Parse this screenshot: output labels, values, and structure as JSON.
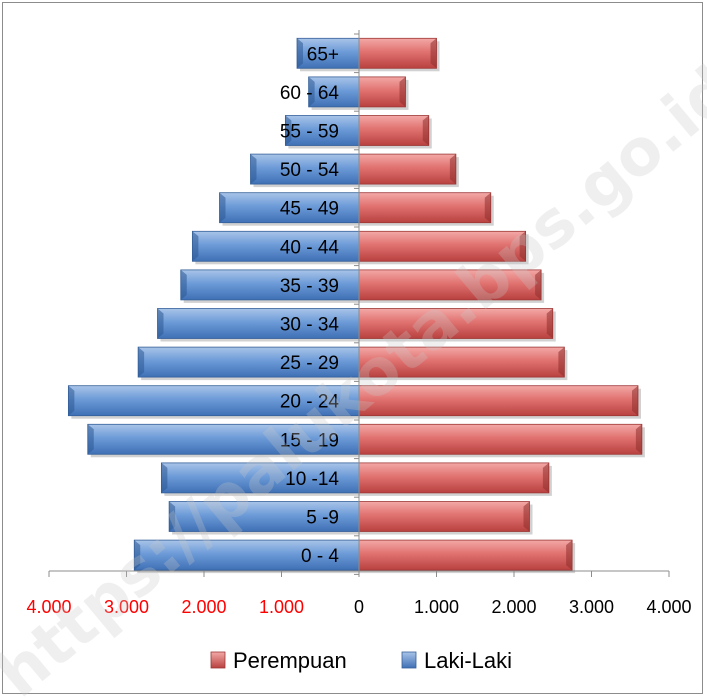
{
  "chart_data": {
    "type": "bar",
    "orientation": "horizontal-pyramid",
    "categories": [
      "0 - 4",
      "5 -9",
      "10 -14",
      "15 - 19",
      "20 - 24",
      "25 - 29",
      "30 - 34",
      "35 - 39",
      "40 - 44",
      "45 - 49",
      "50 - 54",
      "55 - 59",
      "60 - 64",
      "65+"
    ],
    "series": [
      {
        "name": "Laki-Laki",
        "side": "left",
        "color": "#4f81bd",
        "values": [
          2900,
          2450,
          2550,
          3500,
          3750,
          2850,
          2600,
          2300,
          2150,
          1800,
          1400,
          950,
          650,
          800
        ]
      },
      {
        "name": "Perempuan",
        "side": "right",
        "color": "#c0504d",
        "values": [
          2750,
          2200,
          2450,
          3650,
          3600,
          2650,
          2500,
          2350,
          2150,
          1700,
          1250,
          900,
          600,
          1000
        ]
      }
    ],
    "xlim": [
      -4000,
      4000
    ],
    "x_ticks": [
      {
        "label": "4.000",
        "value": -4000,
        "color": "#ff0000"
      },
      {
        "label": "3.000",
        "value": -3000,
        "color": "#ff0000"
      },
      {
        "label": "2.000",
        "value": -2000,
        "color": "#ff0000"
      },
      {
        "label": "1.000",
        "value": -1000,
        "color": "#ff0000"
      },
      {
        "label": "0",
        "value": 0,
        "color": "#000000"
      },
      {
        "label": "1.000",
        "value": 1000,
        "color": "#000000"
      },
      {
        "label": "2.000",
        "value": 2000,
        "color": "#000000"
      },
      {
        "label": "3.000",
        "value": 3000,
        "color": "#000000"
      },
      {
        "label": "4.000",
        "value": 4000,
        "color": "#000000"
      }
    ],
    "legend": {
      "placement": "bottom",
      "items": [
        {
          "label": "Perempuan",
          "color": "#c0504d"
        },
        {
          "label": "Laki-Laki",
          "color": "#4f81bd"
        }
      ]
    },
    "grid": false
  },
  "watermark": "https://palukota.bps.go.id"
}
